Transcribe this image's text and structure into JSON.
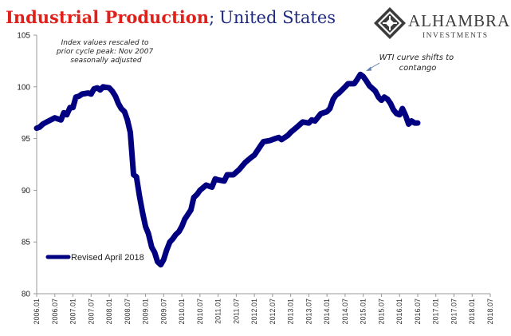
{
  "title": {
    "main": "Industrial Production",
    "separator": ";",
    "rest": "United States"
  },
  "logo": {
    "name": "ALHAMBRA",
    "sub": "INVESTMENTS"
  },
  "colors": {
    "series": "#000080",
    "title_red": "#e0201b",
    "title_blue": "#1f2a80",
    "axis": "#999999",
    "annotation_arrow": "#5b7fb5"
  },
  "chart_data": {
    "type": "line",
    "ylim": [
      80,
      105
    ],
    "yticks": [
      80,
      85,
      90,
      95,
      100,
      105
    ],
    "xlim": [
      2006.0,
      2018.5
    ],
    "xticks": [
      "2006.01",
      "2006.07",
      "2007.01",
      "2007.07",
      "2008.01",
      "2008.07",
      "2009.01",
      "2009.07",
      "2010.01",
      "2010.07",
      "2011.01",
      "2011.07",
      "2012.01",
      "2012.07",
      "2013.01",
      "2013.07",
      "2014.01",
      "2014.07",
      "2015.01",
      "2015.07",
      "2016.01",
      "2016.07",
      "2017.01",
      "2017.07",
      "2018.01",
      "2018.07"
    ],
    "grid": false,
    "legend_position": "bottom-left",
    "series": [
      {
        "name": "Revised April 2018",
        "points": [
          [
            2006.0,
            96.0
          ],
          [
            2006.08,
            96.1
          ],
          [
            2006.17,
            96.4
          ],
          [
            2006.33,
            96.7
          ],
          [
            2006.5,
            97.0
          ],
          [
            2006.67,
            96.8
          ],
          [
            2006.75,
            97.5
          ],
          [
            2006.83,
            97.3
          ],
          [
            2006.92,
            98.0
          ],
          [
            2007.0,
            98.0
          ],
          [
            2007.08,
            99.0
          ],
          [
            2007.17,
            99.1
          ],
          [
            2007.25,
            99.3
          ],
          [
            2007.42,
            99.4
          ],
          [
            2007.5,
            99.3
          ],
          [
            2007.58,
            99.8
          ],
          [
            2007.67,
            99.9
          ],
          [
            2007.75,
            99.7
          ],
          [
            2007.83,
            100.0
          ],
          [
            2008.0,
            99.9
          ],
          [
            2008.08,
            99.6
          ],
          [
            2008.17,
            99.1
          ],
          [
            2008.25,
            98.4
          ],
          [
            2008.33,
            97.9
          ],
          [
            2008.42,
            97.6
          ],
          [
            2008.5,
            96.8
          ],
          [
            2008.58,
            95.6
          ],
          [
            2008.67,
            91.5
          ],
          [
            2008.75,
            91.3
          ],
          [
            2008.83,
            89.5
          ],
          [
            2008.92,
            87.8
          ],
          [
            2009.0,
            86.5
          ],
          [
            2009.08,
            85.8
          ],
          [
            2009.17,
            84.5
          ],
          [
            2009.25,
            84.0
          ],
          [
            2009.33,
            83.1
          ],
          [
            2009.42,
            82.8
          ],
          [
            2009.5,
            83.3
          ],
          [
            2009.58,
            84.2
          ],
          [
            2009.67,
            85.0
          ],
          [
            2009.75,
            85.3
          ],
          [
            2009.83,
            85.7
          ],
          [
            2009.92,
            86.0
          ],
          [
            2010.0,
            86.5
          ],
          [
            2010.08,
            87.2
          ],
          [
            2010.25,
            88.1
          ],
          [
            2010.33,
            89.3
          ],
          [
            2010.42,
            89.6
          ],
          [
            2010.5,
            90.0
          ],
          [
            2010.67,
            90.5
          ],
          [
            2010.83,
            90.3
          ],
          [
            2010.92,
            91.1
          ],
          [
            2011.0,
            91.0
          ],
          [
            2011.17,
            90.9
          ],
          [
            2011.25,
            91.5
          ],
          [
            2011.42,
            91.5
          ],
          [
            2011.58,
            92.0
          ],
          [
            2011.75,
            92.7
          ],
          [
            2011.92,
            93.2
          ],
          [
            2012.0,
            93.4
          ],
          [
            2012.17,
            94.3
          ],
          [
            2012.25,
            94.7
          ],
          [
            2012.42,
            94.8
          ],
          [
            2012.58,
            95.0
          ],
          [
            2012.67,
            95.1
          ],
          [
            2012.75,
            94.9
          ],
          [
            2012.92,
            95.3
          ],
          [
            2013.0,
            95.6
          ],
          [
            2013.17,
            96.1
          ],
          [
            2013.33,
            96.6
          ],
          [
            2013.5,
            96.5
          ],
          [
            2013.58,
            96.8
          ],
          [
            2013.67,
            96.7
          ],
          [
            2013.83,
            97.4
          ],
          [
            2014.0,
            97.6
          ],
          [
            2014.08,
            97.9
          ],
          [
            2014.17,
            98.8
          ],
          [
            2014.25,
            99.2
          ],
          [
            2014.33,
            99.4
          ],
          [
            2014.5,
            100.0
          ],
          [
            2014.58,
            100.3
          ],
          [
            2014.75,
            100.3
          ],
          [
            2014.83,
            100.7
          ],
          [
            2014.92,
            101.2
          ],
          [
            2015.0,
            101.0
          ],
          [
            2015.08,
            100.6
          ],
          [
            2015.17,
            100.1
          ],
          [
            2015.33,
            99.6
          ],
          [
            2015.42,
            99.0
          ],
          [
            2015.5,
            98.7
          ],
          [
            2015.58,
            99.0
          ],
          [
            2015.67,
            98.8
          ],
          [
            2015.75,
            98.4
          ],
          [
            2015.83,
            97.8
          ],
          [
            2015.92,
            97.4
          ],
          [
            2016.0,
            97.3
          ],
          [
            2016.08,
            97.9
          ],
          [
            2016.17,
            97.2
          ],
          [
            2016.25,
            96.4
          ],
          [
            2016.33,
            96.7
          ],
          [
            2016.42,
            96.5
          ],
          [
            2016.5,
            96.5
          ]
        ]
      }
    ],
    "note": [
      "Index values rescaled to",
      "prior cycle peak: Nov 2007",
      "seasonally adjusted"
    ],
    "annotation": {
      "text": [
        "WTI curve shifts to",
        "contango"
      ],
      "target": [
        2014.92,
        101.2
      ]
    }
  }
}
